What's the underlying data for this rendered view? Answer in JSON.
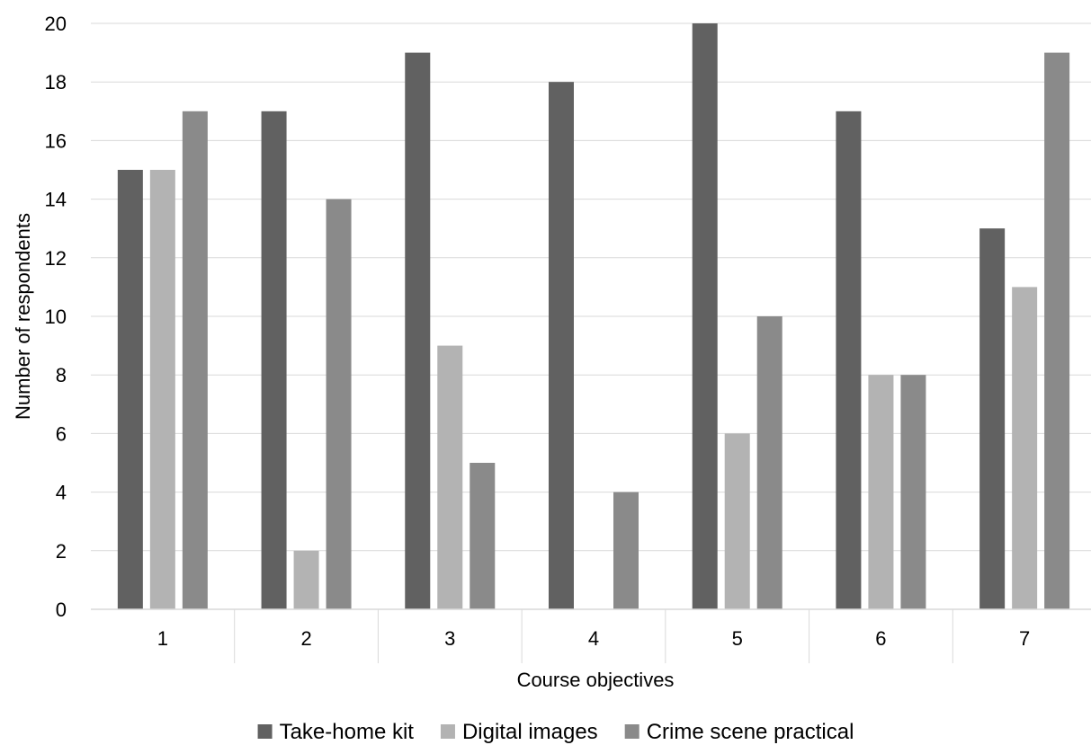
{
  "chart_data": {
    "type": "bar",
    "title": "",
    "xlabel": "Course objectives",
    "ylabel": "Number of respondents",
    "categories": [
      "1",
      "2",
      "3",
      "4",
      "5",
      "6",
      "7"
    ],
    "yticks": [
      "0",
      "2",
      "4",
      "6",
      "8",
      "10",
      "12",
      "14",
      "16",
      "18",
      "20"
    ],
    "ylim": [
      0,
      20
    ],
    "grid": true,
    "legend_position": "bottom",
    "series": [
      {
        "name": "Take-home kit",
        "color": "#616161",
        "values": [
          15,
          17,
          19,
          18,
          20,
          17,
          13
        ]
      },
      {
        "name": "Digital images",
        "color": "#b3b3b3",
        "values": [
          15,
          2,
          9,
          0,
          6,
          8,
          11
        ]
      },
      {
        "name": "Crime scene practical",
        "color": "#8a8a8a",
        "values": [
          17,
          14,
          5,
          4,
          10,
          8,
          19
        ]
      }
    ]
  }
}
